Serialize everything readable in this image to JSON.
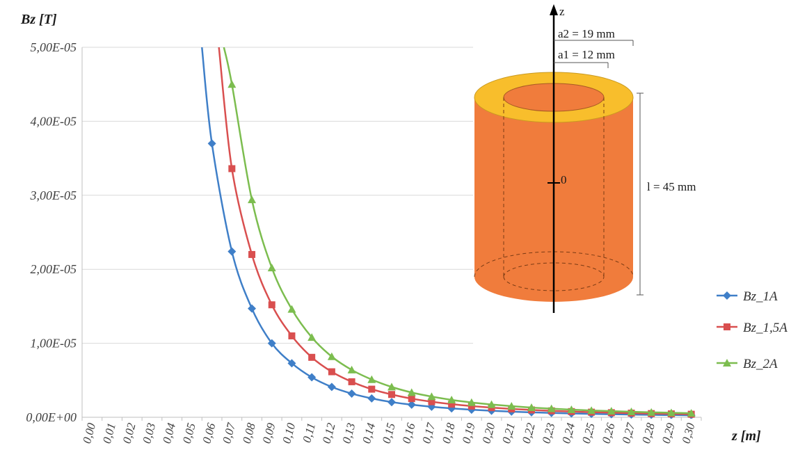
{
  "chart_data": {
    "type": "line",
    "xlabel": "z [m]",
    "ylabel": "Bz [T]",
    "ylim": [
      0,
      5e-05
    ],
    "xlim": [
      0,
      0.3
    ],
    "y_ticks": [
      "0,00E+00",
      "1,00E-05",
      "2,00E-05",
      "3,00E-05",
      "4,00E-05",
      "5,00E-05"
    ],
    "x_ticks": [
      "0,00",
      "0,01",
      "0,02",
      "0,03",
      "0,04",
      "0,05",
      "0,06",
      "0,07",
      "0,08",
      "0,09",
      "0,10",
      "0,11",
      "0,12",
      "0,13",
      "0,14",
      "0,15",
      "0,16",
      "0,17",
      "0,18",
      "0,19",
      "0,20",
      "0,21",
      "0,22",
      "0,23",
      "0,24",
      "0,25",
      "0,26",
      "0,27",
      "0,28",
      "0,29",
      "0,30"
    ],
    "x": [
      0.06,
      0.07,
      0.08,
      0.09,
      0.1,
      0.11,
      0.12,
      0.13,
      0.14,
      0.15,
      0.16,
      0.17,
      0.18,
      0.19,
      0.2,
      0.21,
      0.22,
      0.23,
      0.24,
      0.25,
      0.26,
      0.27,
      0.28,
      0.29,
      0.3
    ],
    "grid": "horizontal",
    "legend_position": "right",
    "series": [
      {
        "name": "Bz_1A",
        "color": "#3f7fc8",
        "marker": "diamond",
        "values": [
          3.7e-05,
          2.24e-05,
          1.47e-05,
          1e-05,
          7.3e-06,
          5.4e-06,
          4.1e-06,
          3.2e-06,
          2.55e-06,
          2.05e-06,
          1.7e-06,
          1.42e-06,
          1.2e-06,
          1.02e-06,
          8.8e-07,
          7.6e-07,
          6.7e-07,
          5.9e-07,
          5.2e-07,
          4.6e-07,
          4.1e-07,
          3.7e-07,
          3.3e-07,
          3e-07,
          2.7e-07
        ],
        "curve_above_range": [
          [
            0.055,
            5e-05
          ],
          [
            0.06,
            3.7e-05
          ]
        ]
      },
      {
        "name": "Bz_1,5A",
        "color": "#d94f4f",
        "marker": "square",
        "values": [
          5.55e-05,
          3.36e-05,
          2.2e-05,
          1.52e-05,
          1.1e-05,
          8.1e-06,
          6.15e-06,
          4.8e-06,
          3.8e-06,
          3.08e-06,
          2.52e-06,
          2.1e-06,
          1.77e-06,
          1.51e-06,
          1.3e-06,
          1.13e-06,
          9.9e-07,
          8.7e-07,
          7.7e-07,
          6.9e-07,
          6.2e-07,
          5.6e-07,
          5e-07,
          4.6e-07,
          4.1e-07
        ],
        "curve_above_range": [
          [
            0.0635,
            5e-05
          ],
          [
            0.07,
            3.36e-05
          ]
        ]
      },
      {
        "name": "Bz_2A",
        "color": "#7cbd4f",
        "marker": "triangle",
        "values": [
          7.4e-05,
          4.5e-05,
          2.94e-05,
          2.02e-05,
          1.46e-05,
          1.08e-05,
          8.2e-06,
          6.4e-06,
          5.1e-06,
          4.1e-06,
          3.35e-06,
          2.8e-06,
          2.35e-06,
          2e-06,
          1.73e-06,
          1.5e-06,
          1.31e-06,
          1.16e-06,
          1.03e-06,
          9.2e-07,
          8.3e-07,
          7.5e-07,
          6.7e-07,
          6.1e-07,
          5.5e-07
        ],
        "curve_above_range": [
          [
            0.066,
            5e-05
          ],
          [
            0.07,
            4.5e-05
          ]
        ]
      }
    ]
  },
  "diagram": {
    "axis_label": "z",
    "origin_label": "0",
    "outer_radius_label": "a2 = 19 mm",
    "inner_radius_label": "a1 = 12 mm",
    "length_label": "l = 45 mm",
    "body_color": "#f07c3c",
    "ring_color": "#f8be2c"
  }
}
